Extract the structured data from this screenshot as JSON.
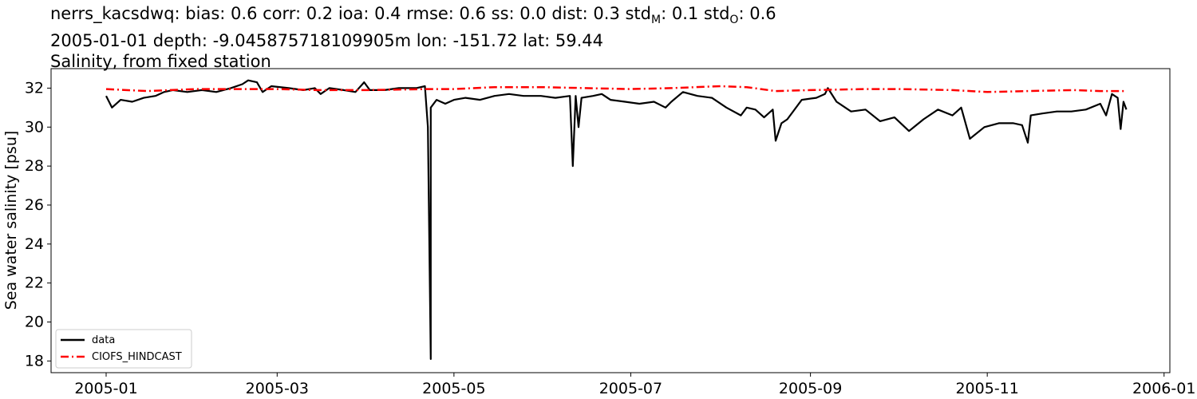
{
  "titles": {
    "line1_prefix": "nerrs_kacsdwq: bias: 0.6  corr: 0.2  ioa: 0.4  rmse: 0.6  ss: 0.0  dist: 0.3  std",
    "std_model_sub": "M",
    "std_model_value": ": 0.1  std",
    "std_obs_sub": "O",
    "std_obs_value": ": 0.6",
    "line2": "2005-01-01 depth: -9.045875718109905m lon: -151.72 lat: 59.44",
    "line3": "Salinity, from fixed station"
  },
  "chart_data": {
    "type": "line",
    "title": "Salinity, from fixed station",
    "xlabel": "",
    "ylabel": "Sea water salinity [psu]",
    "x_ticks": [
      "2005-01",
      "2005-03",
      "2005-05",
      "2005-07",
      "2005-09",
      "2005-11",
      "2006-01"
    ],
    "y_ticks": [
      18,
      20,
      22,
      24,
      26,
      28,
      30,
      32
    ],
    "xlim": [
      "2004-12-13",
      "2006-01-03"
    ],
    "ylim": [
      17.4,
      33.0
    ],
    "grid": false,
    "legend_position": "lower-left",
    "series": [
      {
        "name": "data",
        "color": "#000000",
        "style": "solid",
        "points": [
          [
            "2005-01-01",
            31.6
          ],
          [
            "2005-01-03",
            31.0
          ],
          [
            "2005-01-06",
            31.4
          ],
          [
            "2005-01-10",
            31.3
          ],
          [
            "2005-01-14",
            31.5
          ],
          [
            "2005-01-18",
            31.6
          ],
          [
            "2005-01-21",
            31.8
          ],
          [
            "2005-01-24",
            31.9
          ],
          [
            "2005-01-29",
            31.8
          ],
          [
            "2005-02-03",
            31.9
          ],
          [
            "2005-02-08",
            31.8
          ],
          [
            "2005-02-13",
            32.0
          ],
          [
            "2005-02-17",
            32.2
          ],
          [
            "2005-02-19",
            32.4
          ],
          [
            "2005-02-22",
            32.3
          ],
          [
            "2005-02-24",
            31.8
          ],
          [
            "2005-02-27",
            32.1
          ],
          [
            "2005-03-05",
            32.0
          ],
          [
            "2005-03-10",
            31.9
          ],
          [
            "2005-03-14",
            32.0
          ],
          [
            "2005-03-16",
            31.7
          ],
          [
            "2005-03-19",
            32.0
          ],
          [
            "2005-03-24",
            31.9
          ],
          [
            "2005-03-28",
            31.8
          ],
          [
            "2005-03-31",
            32.3
          ],
          [
            "2005-04-02",
            31.9
          ],
          [
            "2005-04-07",
            31.9
          ],
          [
            "2005-04-12",
            32.0
          ],
          [
            "2005-04-18",
            32.0
          ],
          [
            "2005-04-21",
            32.1
          ],
          [
            "2005-04-22",
            30.0
          ],
          [
            "2005-04-23",
            18.1
          ],
          [
            "2005-04-23",
            31.0
          ],
          [
            "2005-04-25",
            31.4
          ],
          [
            "2005-04-28",
            31.2
          ],
          [
            "2005-05-01",
            31.4
          ],
          [
            "2005-05-05",
            31.5
          ],
          [
            "2005-05-10",
            31.4
          ],
          [
            "2005-05-15",
            31.6
          ],
          [
            "2005-05-20",
            31.7
          ],
          [
            "2005-05-25",
            31.6
          ],
          [
            "2005-05-31",
            31.6
          ],
          [
            "2005-06-05",
            31.5
          ],
          [
            "2005-06-10",
            31.6
          ],
          [
            "2005-06-11",
            28.0
          ],
          [
            "2005-06-12",
            31.6
          ],
          [
            "2005-06-13",
            30.0
          ],
          [
            "2005-06-14",
            31.5
          ],
          [
            "2005-06-18",
            31.6
          ],
          [
            "2005-06-21",
            31.7
          ],
          [
            "2005-06-24",
            31.4
          ],
          [
            "2005-06-29",
            31.3
          ],
          [
            "2005-07-04",
            31.2
          ],
          [
            "2005-07-09",
            31.3
          ],
          [
            "2005-07-13",
            31.0
          ],
          [
            "2005-07-15",
            31.3
          ],
          [
            "2005-07-19",
            31.8
          ],
          [
            "2005-07-24",
            31.6
          ],
          [
            "2005-07-29",
            31.5
          ],
          [
            "2005-08-03",
            31.0
          ],
          [
            "2005-08-08",
            30.6
          ],
          [
            "2005-08-10",
            31.0
          ],
          [
            "2005-08-13",
            30.9
          ],
          [
            "2005-08-16",
            30.5
          ],
          [
            "2005-08-19",
            30.9
          ],
          [
            "2005-08-20",
            29.3
          ],
          [
            "2005-08-22",
            30.2
          ],
          [
            "2005-08-24",
            30.4
          ],
          [
            "2005-08-29",
            31.4
          ],
          [
            "2005-09-03",
            31.5
          ],
          [
            "2005-09-06",
            31.7
          ],
          [
            "2005-09-07",
            32.0
          ],
          [
            "2005-09-10",
            31.3
          ],
          [
            "2005-09-15",
            30.8
          ],
          [
            "2005-09-20",
            30.9
          ],
          [
            "2005-09-25",
            30.3
          ],
          [
            "2005-09-30",
            30.5
          ],
          [
            "2005-10-05",
            29.8
          ],
          [
            "2005-10-10",
            30.4
          ],
          [
            "2005-10-15",
            30.9
          ],
          [
            "2005-10-20",
            30.6
          ],
          [
            "2005-10-23",
            31.0
          ],
          [
            "2005-10-26",
            29.4
          ],
          [
            "2005-10-31",
            30.0
          ],
          [
            "2005-11-05",
            30.2
          ],
          [
            "2005-11-10",
            30.2
          ],
          [
            "2005-11-13",
            30.1
          ],
          [
            "2005-11-15",
            29.2
          ],
          [
            "2005-11-16",
            30.6
          ],
          [
            "2005-11-20",
            30.7
          ],
          [
            "2005-11-25",
            30.8
          ],
          [
            "2005-11-30",
            30.8
          ],
          [
            "2005-12-05",
            30.9
          ],
          [
            "2005-12-10",
            31.2
          ],
          [
            "2005-12-12",
            30.6
          ],
          [
            "2005-12-14",
            31.7
          ],
          [
            "2005-12-16",
            31.5
          ],
          [
            "2005-12-17",
            29.9
          ],
          [
            "2005-12-18",
            31.3
          ],
          [
            "2005-12-19",
            30.9
          ]
        ]
      },
      {
        "name": "CIOFS_HINDCAST",
        "color": "#ff0000",
        "style": "dashdot",
        "points": [
          [
            "2005-01-01",
            31.95
          ],
          [
            "2005-01-15",
            31.85
          ],
          [
            "2005-02-01",
            31.95
          ],
          [
            "2005-02-15",
            31.95
          ],
          [
            "2005-03-01",
            31.95
          ],
          [
            "2005-03-15",
            31.9
          ],
          [
            "2005-04-01",
            31.9
          ],
          [
            "2005-04-22",
            31.95
          ],
          [
            "2005-05-01",
            31.95
          ],
          [
            "2005-05-15",
            32.05
          ],
          [
            "2005-06-01",
            32.05
          ],
          [
            "2005-06-15",
            32.0
          ],
          [
            "2005-07-01",
            31.95
          ],
          [
            "2005-07-15",
            32.0
          ],
          [
            "2005-08-01",
            32.1
          ],
          [
            "2005-08-10",
            32.05
          ],
          [
            "2005-08-20",
            31.85
          ],
          [
            "2005-09-01",
            31.9
          ],
          [
            "2005-09-20",
            31.95
          ],
          [
            "2005-10-01",
            31.95
          ],
          [
            "2005-10-20",
            31.9
          ],
          [
            "2005-11-01",
            31.8
          ],
          [
            "2005-11-15",
            31.85
          ],
          [
            "2005-12-01",
            31.9
          ],
          [
            "2005-12-10",
            31.85
          ],
          [
            "2005-12-19",
            31.85
          ]
        ]
      }
    ]
  }
}
